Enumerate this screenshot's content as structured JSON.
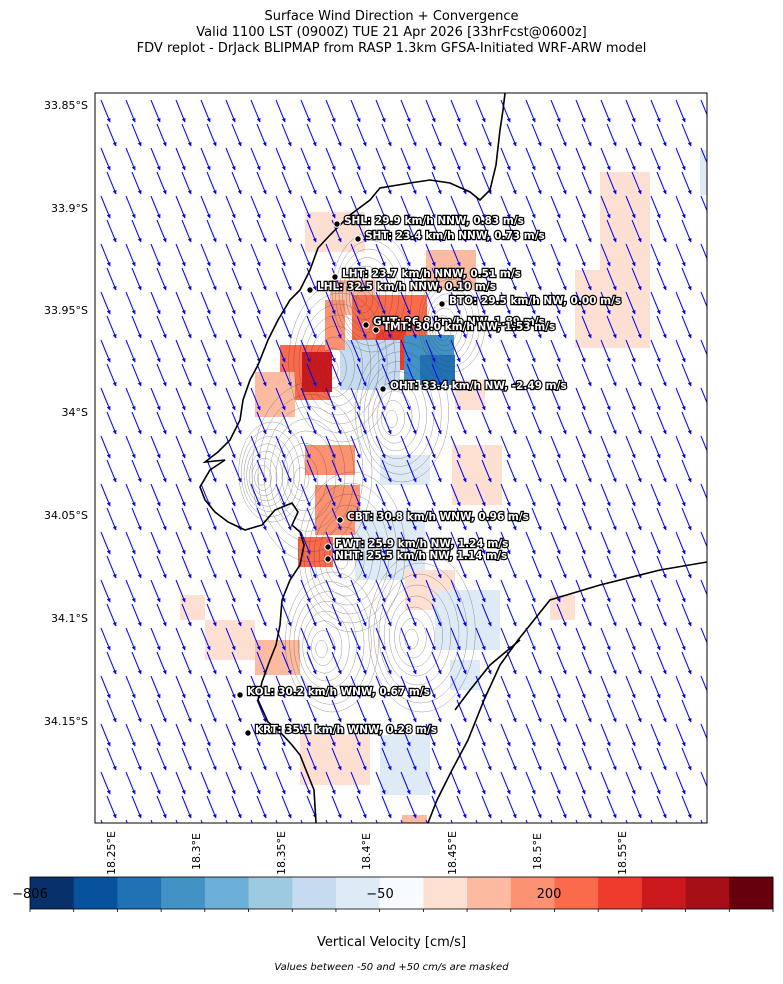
{
  "title": {
    "line1": "Surface Wind Direction + Convergence",
    "line2": "Valid 1100 LST (0900Z) TUE 21 Apr 2026 [33hrFcst@0600z]",
    "line3": "FDV replot - DrJack BLIPMAP from RASP 1.3km GFSA-Initiated WRF-ARW model"
  },
  "map": {
    "lat_labels": [
      "33.85°S",
      "33.9°S",
      "33.95°S",
      "34°S",
      "34.05°S",
      "34.1°S",
      "34.15°S"
    ],
    "lon_labels": [
      "18.25°E",
      "18.3°E",
      "18.35°E",
      "18.4°E",
      "18.45°E",
      "18.5°E",
      "18.55°E"
    ],
    "wind_arrow_color": "#0000ff",
    "wind_direction_general": "NW"
  },
  "stations": [
    {
      "code": "SHL",
      "label": "SHL: 29.9 km/h NNW, 0.83 m/s"
    },
    {
      "code": "SHT",
      "label": "SHT: 23.4 km/h NNW, 0.73 m/s"
    },
    {
      "code": "LHT",
      "label": "LHT: 23.7 km/h NNW, 0.51 m/s"
    },
    {
      "code": "LHL",
      "label": "LHL: 32.5 km/h NNW, 0.10 m/s"
    },
    {
      "code": "BTO",
      "label": "BTO: 29.5 km/h NW, 0.00 m/s"
    },
    {
      "code": "GUT",
      "label": "GUT: 26.8 km/h NW, 1.89 m/s"
    },
    {
      "code": "TMT",
      "label": "TMT: 30.0 km/h NW, 1.53 m/s"
    },
    {
      "code": "OHT",
      "label": "OHT: 33.4 km/h NW, -2.49 m/s"
    },
    {
      "code": "CBT",
      "label": "CBT: 30.8 km/h WNW, 0.96 m/s"
    },
    {
      "code": "FWT",
      "label": "FWT: 25.9 km/h NW, 1.24 m/s"
    },
    {
      "code": "NHT",
      "label": "NHT: 25.5 km/h NW, 1.14 m/s"
    },
    {
      "code": "KOL",
      "label": "KOL: 30.2 km/h WNW, 0.67 m/s"
    },
    {
      "code": "KRT",
      "label": "KRT: 35.1 km/h WNW, 0.28 m/s"
    }
  ],
  "colorbar": {
    "title": "Vertical Velocity [cm/s]",
    "tick_labels": [
      "−806",
      "−50",
      "200"
    ],
    "colors": [
      "#08306b",
      "#08519c",
      "#2171b5",
      "#4292c6",
      "#6baed6",
      "#9ecae1",
      "#c6dbef",
      "#deebf7",
      "#f7fbff",
      "#fee0d2",
      "#fcbba1",
      "#fc9272",
      "#fb6a4a",
      "#ef3b2c",
      "#cb181d",
      "#a50f15",
      "#67000d"
    ],
    "note": "Values between -50 and +50 cm/s are masked"
  }
}
